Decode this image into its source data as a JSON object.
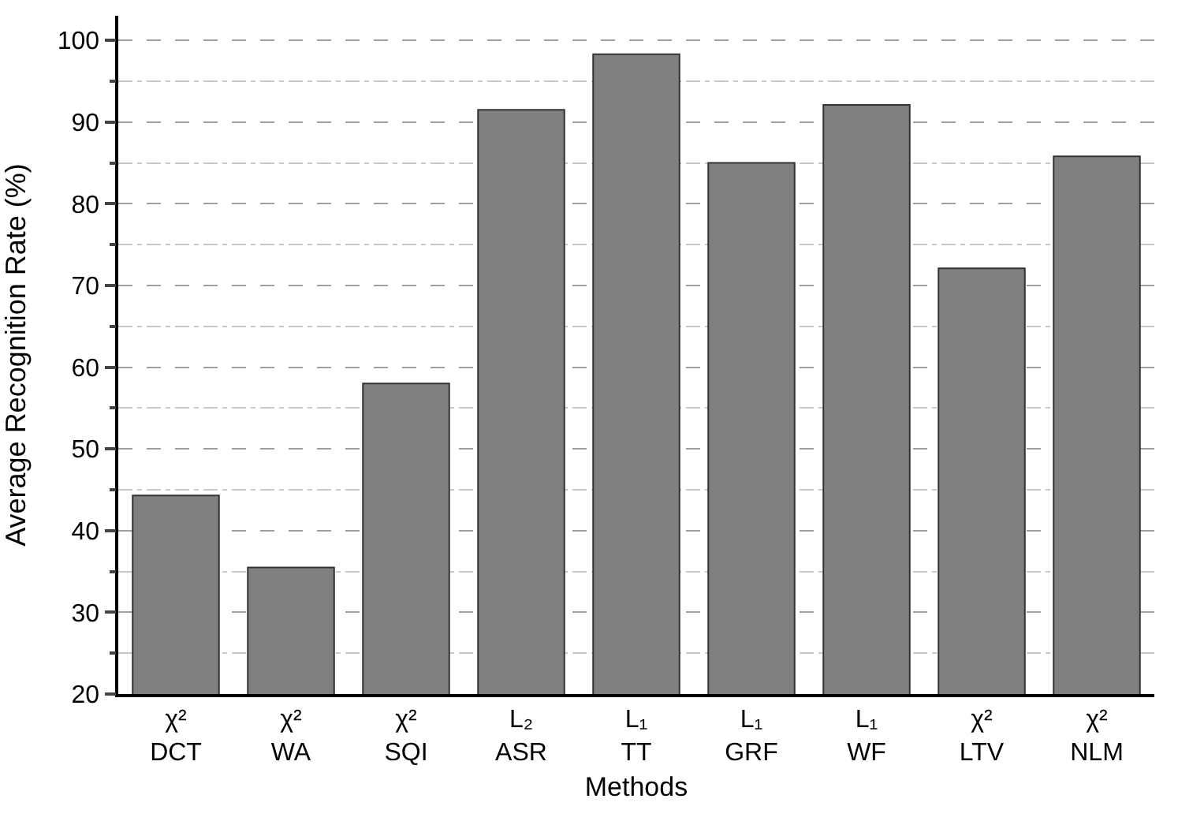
{
  "chart_data": {
    "type": "bar",
    "xlabel": "Methods",
    "ylabel": "Average Recognition Rate (%)",
    "categories": [
      "χ²\nDCT",
      "χ²\nWA",
      "χ²\nSQI",
      "L₂\nASR",
      "L₁\nTT",
      "L₁\nGRF",
      "L₁\nWF",
      "χ²\nLTV",
      "χ²\nNLM"
    ],
    "values": [
      44.3,
      35.5,
      58,
      91.5,
      98.3,
      85,
      92.1,
      72.1,
      85.8
    ],
    "color": "#808080",
    "ylim": [
      20,
      103
    ],
    "yticks": [
      20,
      30,
      40,
      50,
      60,
      70,
      80,
      90,
      100
    ],
    "grid": "y"
  }
}
